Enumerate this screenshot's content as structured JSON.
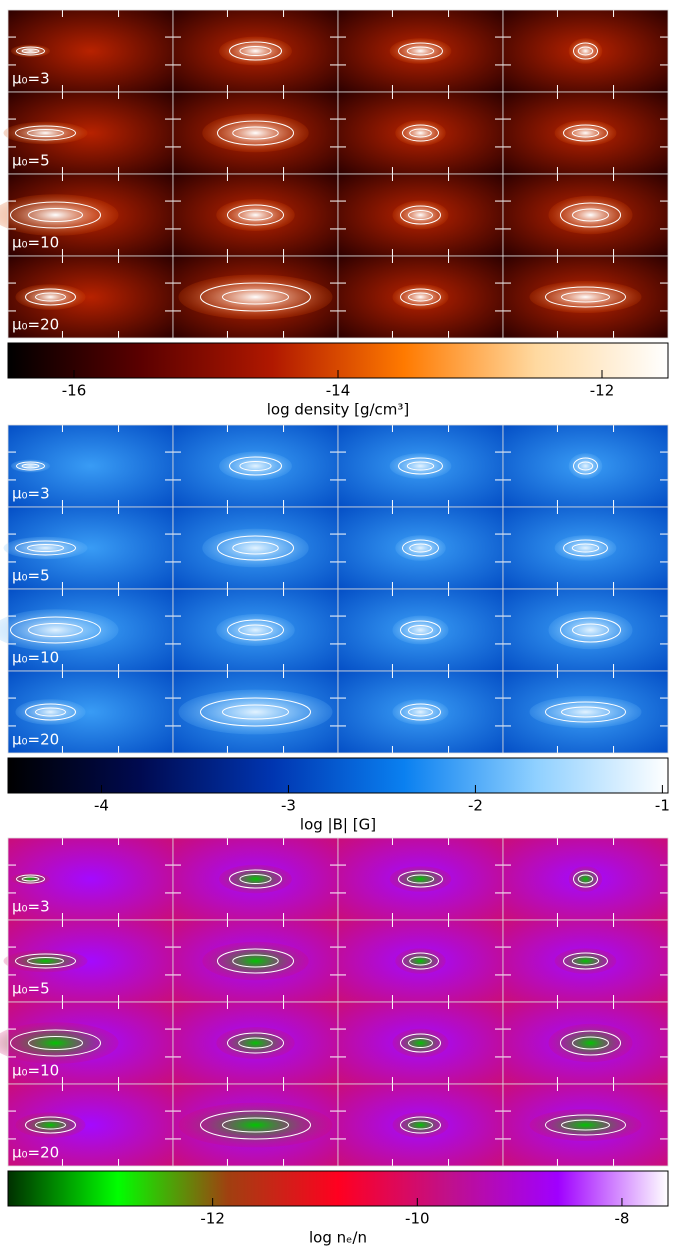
{
  "chart_data": [
    {
      "type": "image-grid",
      "row_labels": [
        "μ₀=3",
        "μ₀=5",
        "μ₀=10",
        "μ₀=20"
      ],
      "xlabel": "log density [g/cm³]",
      "xlim": [
        -16.5,
        -11.5
      ],
      "xticks": [
        -16,
        -14,
        -12
      ],
      "colors": [
        "#000000",
        "#5a0000",
        "#b01800",
        "#ff7a00",
        "#ffd9a0",
        "#ffffff"
      ]
    },
    {
      "type": "image-grid",
      "row_labels": [
        "μ₀=3",
        "μ₀=5",
        "μ₀=10",
        "μ₀=20"
      ],
      "xlabel": "log |B| [G]",
      "xlim": [
        -4.5,
        -0.97
      ],
      "xticks": [
        -4,
        -3,
        -2,
        -1
      ],
      "colors": [
        "#000000",
        "#000a50",
        "#0035b0",
        "#0a80f0",
        "#8fd0ff",
        "#ffffff"
      ]
    },
    {
      "type": "image-grid",
      "row_labels": [
        "μ₀=3",
        "μ₀=5",
        "μ₀=10",
        "μ₀=20"
      ],
      "xlabel": "log nₑ/n",
      "xlim": [
        -14,
        -7.55
      ],
      "xticks": [
        -12,
        -10,
        -8
      ],
      "colors": [
        "#003000",
        "#00ff00",
        "#a04010",
        "#ff0020",
        "#c0108a",
        "#a000ff",
        "#ffffff"
      ]
    }
  ]
}
